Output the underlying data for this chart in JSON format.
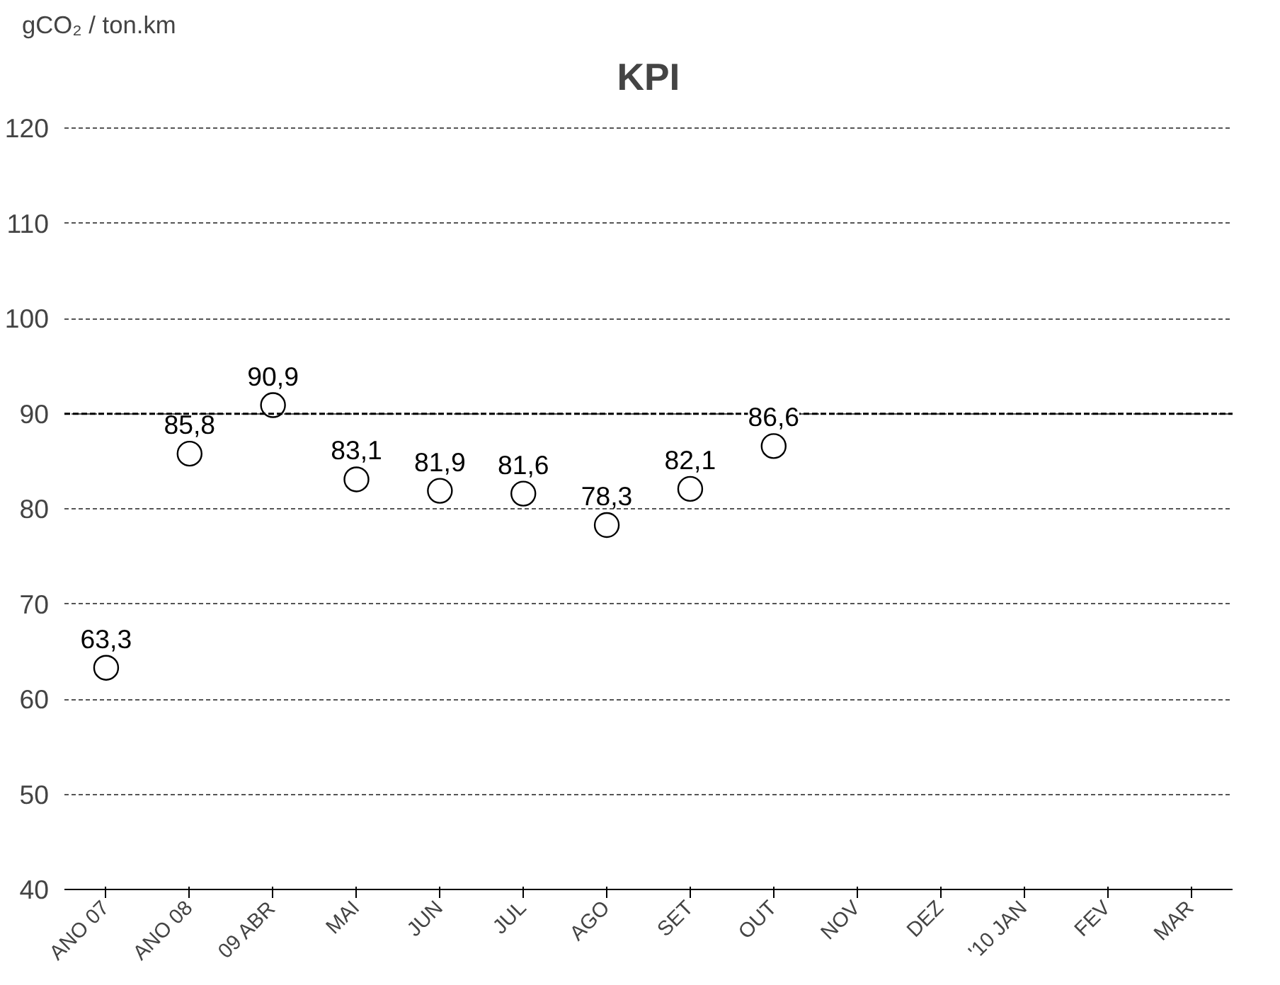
{
  "chart_data": {
    "type": "scatter",
    "title": "KPI",
    "ylabel": "gCO₂ / ton.km",
    "categories": [
      "ANO 07",
      "ANO 08",
      "09 ABR",
      "MAI",
      "JUN",
      "JUL",
      "AGO",
      "SET",
      "OUT",
      "NOV",
      "DEZ",
      "'10 JAN",
      "FEV",
      "MAR"
    ],
    "series": [
      {
        "color": "#000000",
        "values": [
          63.3,
          85.8,
          90.9,
          83.1,
          81.9,
          81.6,
          78.3,
          82.1,
          86.6,
          null,
          null,
          null,
          null,
          null
        ],
        "value_labels": [
          "63,3",
          "85,8",
          "90,9",
          "83,1",
          "81,9",
          "81,6",
          "78,3",
          "82,1",
          "86,6",
          null,
          null,
          null,
          null,
          null
        ]
      }
    ],
    "ylim": [
      40,
      120
    ],
    "yticks": [
      40,
      50,
      60,
      70,
      80,
      90,
      100,
      110,
      120
    ],
    "grid": "y",
    "marker": "circle",
    "ref_lines": [
      {
        "axis": "y",
        "value": 90,
        "color": "#000000",
        "line_style": "dashed"
      }
    ]
  }
}
